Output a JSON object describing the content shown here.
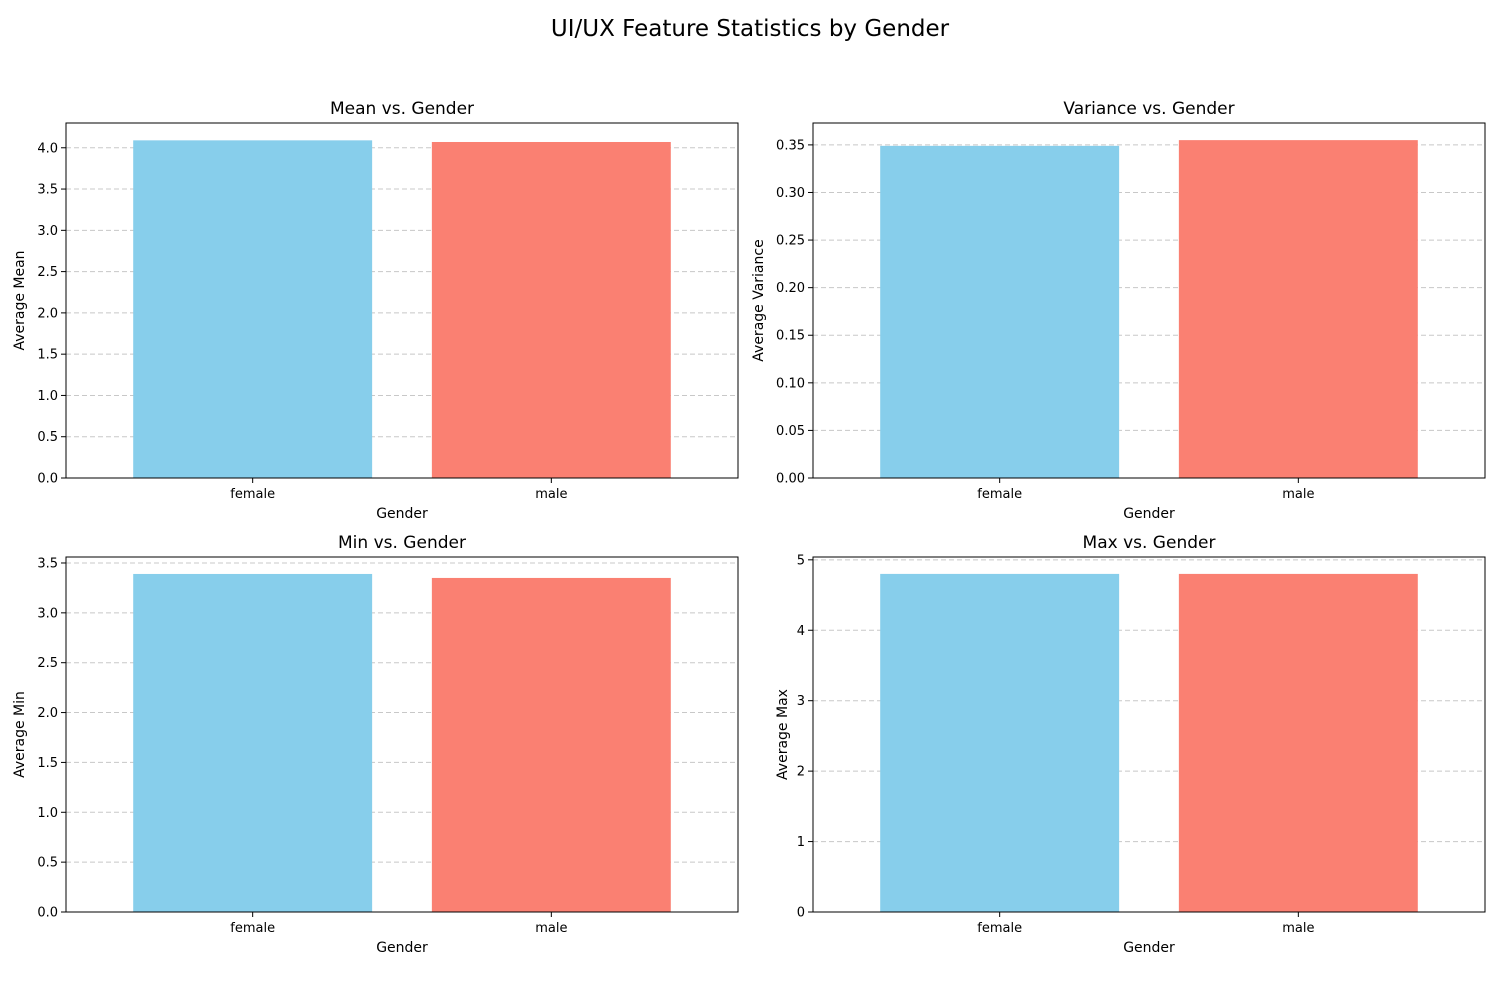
{
  "figure": {
    "title": "UI/UX Feature Statistics by Gender"
  },
  "colors": {
    "female": "#87ceeb",
    "male": "#fa8072",
    "grid": "#c8c8c8",
    "axes": "#000000"
  },
  "chart_data": [
    {
      "type": "bar",
      "title": "Mean vs. Gender",
      "xlabel": "Gender",
      "ylabel": "Average Mean",
      "categories": [
        "female",
        "male"
      ],
      "values": [
        4.09,
        4.07
      ],
      "ylim": [
        0,
        4.3
      ],
      "yticks": [
        0.0,
        0.5,
        1.0,
        1.5,
        2.0,
        2.5,
        3.0,
        3.5,
        4.0
      ],
      "tick_decimals": 1,
      "grid": "y-dashed"
    },
    {
      "type": "bar",
      "title": "Variance vs. Gender",
      "xlabel": "Gender",
      "ylabel": "Average Variance",
      "categories": [
        "female",
        "male"
      ],
      "values": [
        0.349,
        0.355
      ],
      "ylim": [
        0,
        0.373
      ],
      "yticks": [
        0.0,
        0.05,
        0.1,
        0.15,
        0.2,
        0.25,
        0.3,
        0.35
      ],
      "tick_decimals": 2,
      "grid": "y-dashed"
    },
    {
      "type": "bar",
      "title": "Min vs. Gender",
      "xlabel": "Gender",
      "ylabel": "Average Min",
      "categories": [
        "female",
        "male"
      ],
      "values": [
        3.39,
        3.35
      ],
      "ylim": [
        0,
        3.56
      ],
      "yticks": [
        0.0,
        0.5,
        1.0,
        1.5,
        2.0,
        2.5,
        3.0,
        3.5
      ],
      "tick_decimals": 1,
      "grid": "y-dashed"
    },
    {
      "type": "bar",
      "title": "Max vs. Gender",
      "xlabel": "Gender",
      "ylabel": "Average Max",
      "categories": [
        "female",
        "male"
      ],
      "values": [
        4.8,
        4.8
      ],
      "ylim": [
        0,
        5.04
      ],
      "yticks": [
        0,
        1,
        2,
        3,
        4,
        5
      ],
      "tick_decimals": 0,
      "grid": "y-dashed"
    }
  ]
}
